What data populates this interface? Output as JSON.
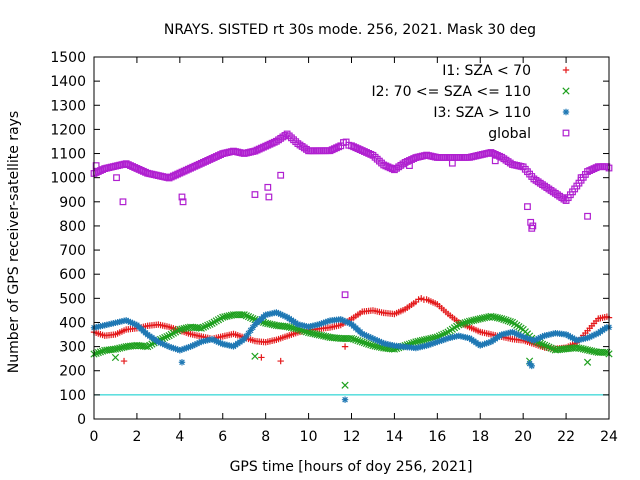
{
  "chart_data": {
    "type": "scatter",
    "title": "NRAYS. SISTED rt 30s mode. 256, 2021. Mask 30 deg",
    "xlabel": "GPS time [hours of doy 256, 2021]",
    "ylabel": "Number of GPS receiver-satellite rays",
    "xlim": [
      0,
      24
    ],
    "ylim": [
      0,
      1500
    ],
    "xticks": [
      0,
      2,
      4,
      6,
      8,
      10,
      12,
      14,
      16,
      18,
      20,
      22,
      24
    ],
    "yticks": [
      0,
      100,
      200,
      300,
      400,
      500,
      600,
      700,
      800,
      900,
      1000,
      1100,
      1200,
      1300,
      1400,
      1500
    ],
    "grid": false,
    "legend_position": "top-right",
    "reference_line": {
      "y": 100,
      "color": "#00cccc"
    },
    "series": [
      {
        "name": "I1: SZA < 70",
        "marker": "+",
        "color": "#e41a1c",
        "x": [
          0,
          0.5,
          1,
          1.5,
          2,
          2.5,
          3,
          3.5,
          4,
          4.5,
          5,
          5.5,
          6,
          6.5,
          7,
          7.5,
          8,
          8.5,
          9,
          9.5,
          10,
          10.5,
          11,
          11.5,
          12,
          12.5,
          13,
          13.5,
          14,
          14.5,
          15,
          15.25,
          15.5,
          16,
          16.5,
          17,
          17.5,
          18,
          18.5,
          19,
          19.5,
          20,
          20.5,
          21,
          21.5,
          22,
          22.5,
          23,
          23.5,
          24,
          1.4,
          7.8,
          8.7,
          11.7
        ],
        "y": [
          360,
          345,
          350,
          370,
          375,
          385,
          390,
          380,
          365,
          350,
          340,
          330,
          340,
          350,
          335,
          320,
          315,
          325,
          340,
          355,
          365,
          370,
          375,
          385,
          410,
          440,
          445,
          435,
          430,
          450,
          480,
          505,
          490,
          470,
          430,
          395,
          375,
          355,
          345,
          335,
          325,
          320,
          305,
          290,
          285,
          290,
          310,
          360,
          410,
          420,
          240,
          255,
          240,
          300
        ]
      },
      {
        "name": "I2: 70 <= SZA <= 110",
        "marker": "x",
        "color": "#1fa01f",
        "x": [
          0,
          0.5,
          1,
          1.5,
          2,
          2.5,
          3,
          3.5,
          4,
          4.5,
          5,
          5.5,
          6,
          6.5,
          7,
          7.5,
          8,
          8.5,
          9,
          9.5,
          10,
          10.5,
          11,
          11.5,
          12,
          12.5,
          13,
          13.5,
          14,
          14.5,
          15,
          15.5,
          16,
          16.5,
          17,
          17.5,
          18,
          18.5,
          19,
          19.5,
          20,
          20.5,
          21,
          21.5,
          22,
          22.5,
          23,
          23.5,
          24,
          1,
          7.5,
          11.7,
          20.3,
          23
        ],
        "y": [
          270,
          285,
          290,
          300,
          305,
          300,
          325,
          345,
          370,
          380,
          375,
          395,
          420,
          430,
          430,
          410,
          395,
          385,
          380,
          370,
          355,
          345,
          335,
          330,
          330,
          315,
          300,
          290,
          285,
          300,
          315,
          325,
          335,
          355,
          385,
          400,
          410,
          420,
          410,
          395,
          365,
          320,
          300,
          280,
          285,
          290,
          280,
          270,
          270,
          255,
          260,
          140,
          240,
          235
        ]
      },
      {
        "name": "I3: SZA > 110",
        "marker": "*",
        "color": "#1f78b4",
        "x": [
          0,
          0.5,
          1,
          1.5,
          2,
          2.5,
          3,
          3.5,
          4,
          4.5,
          5,
          5.5,
          6,
          6.5,
          7,
          7.5,
          8,
          8.5,
          9,
          9.5,
          10,
          10.5,
          11,
          11.5,
          12,
          12.5,
          13,
          13.5,
          14,
          14.5,
          15,
          15.5,
          16,
          16.5,
          17,
          17.5,
          18,
          18.5,
          19,
          19.5,
          20,
          20.5,
          21,
          21.5,
          22,
          22.5,
          23,
          23.5,
          24,
          4.1,
          11.7,
          20.3,
          20.4
        ],
        "y": [
          380,
          390,
          400,
          410,
          390,
          350,
          320,
          300,
          285,
          300,
          320,
          330,
          310,
          300,
          330,
          390,
          430,
          440,
          420,
          390,
          380,
          390,
          405,
          410,
          390,
          350,
          330,
          310,
          300,
          295,
          290,
          300,
          315,
          330,
          340,
          330,
          300,
          315,
          345,
          355,
          335,
          320,
          340,
          350,
          345,
          320,
          330,
          350,
          380,
          235,
          80,
          230,
          220
        ]
      },
      {
        "name": "global",
        "marker": "square",
        "color": "#b020d0",
        "x": [
          0,
          0.5,
          1,
          1.5,
          2,
          2.5,
          3,
          3.5,
          4,
          4.5,
          5,
          5.5,
          6,
          6.5,
          7,
          7.5,
          8,
          8.5,
          9,
          9.5,
          10,
          10.5,
          11,
          11.5,
          11.75,
          12,
          12.5,
          13,
          13.5,
          14,
          14.5,
          15,
          15.5,
          16,
          16.5,
          17,
          17.5,
          18,
          18.5,
          19,
          19.5,
          20,
          20.5,
          21,
          21.5,
          22,
          22.5,
          23,
          23.5,
          24,
          0.1,
          1.05,
          1.35,
          4.1,
          4.15,
          7.5,
          8.1,
          8.15,
          8.7,
          11.7,
          14.7,
          16.7,
          18.7,
          20.2,
          20.35,
          20.4,
          20.45,
          23,
          22.7
        ],
        "y": [
          1020,
          1040,
          1050,
          1060,
          1040,
          1020,
          1010,
          1000,
          1020,
          1040,
          1060,
          1080,
          1100,
          1110,
          1100,
          1110,
          1130,
          1150,
          1180,
          1140,
          1110,
          1110,
          1110,
          1130,
          1150,
          1130,
          1110,
          1090,
          1050,
          1030,
          1060,
          1080,
          1090,
          1080,
          1080,
          1080,
          1080,
          1090,
          1100,
          1080,
          1050,
          1040,
          990,
          960,
          930,
          900,
          960,
          1020,
          1040,
          1040,
          1050,
          1000,
          900,
          920,
          900,
          930,
          960,
          920,
          1010,
          515,
          1050,
          1060,
          1070,
          880,
          815,
          790,
          800,
          840,
          1000
        ]
      }
    ]
  }
}
